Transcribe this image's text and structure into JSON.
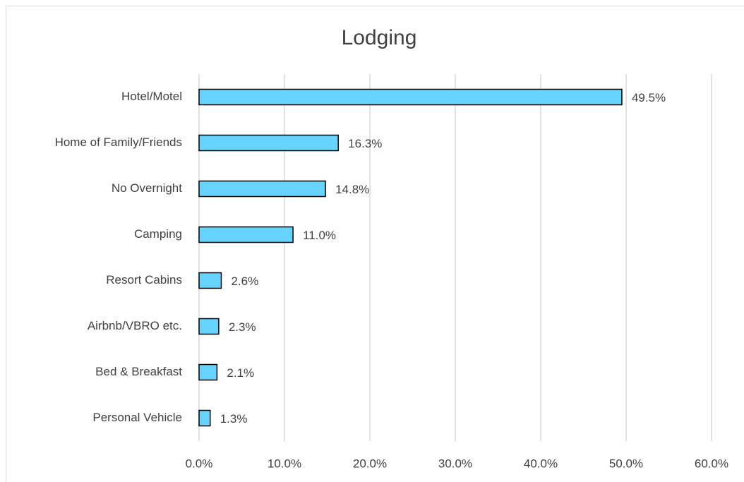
{
  "chart_data": {
    "type": "bar",
    "orientation": "horizontal",
    "title": "Lodging",
    "categories": [
      "Hotel/Motel",
      "Home of Family/Friends",
      "No Overnight",
      "Camping",
      "Resort Cabins",
      "Airbnb/VBRO etc.",
      "Bed & Breakfast",
      "Personal Vehicle"
    ],
    "values": [
      49.5,
      16.3,
      14.8,
      11.0,
      2.6,
      2.3,
      2.1,
      1.3
    ],
    "value_labels": [
      "49.5%",
      "16.3%",
      "14.8%",
      "11.0%",
      "2.6%",
      "2.3%",
      "2.1%",
      "1.3%"
    ],
    "color": "#66d4ff",
    "xlim": [
      0,
      60
    ],
    "xticks": [
      {
        "value": 0,
        "label": "0.0%"
      },
      {
        "value": 10,
        "label": "10.0%"
      },
      {
        "value": 20,
        "label": "20.0%"
      },
      {
        "value": 30,
        "label": "30.0%"
      },
      {
        "value": 40,
        "label": "40.0%"
      },
      {
        "value": 50,
        "label": "50.0%"
      },
      {
        "value": 60,
        "label": "60.0%"
      }
    ],
    "grid": true
  }
}
